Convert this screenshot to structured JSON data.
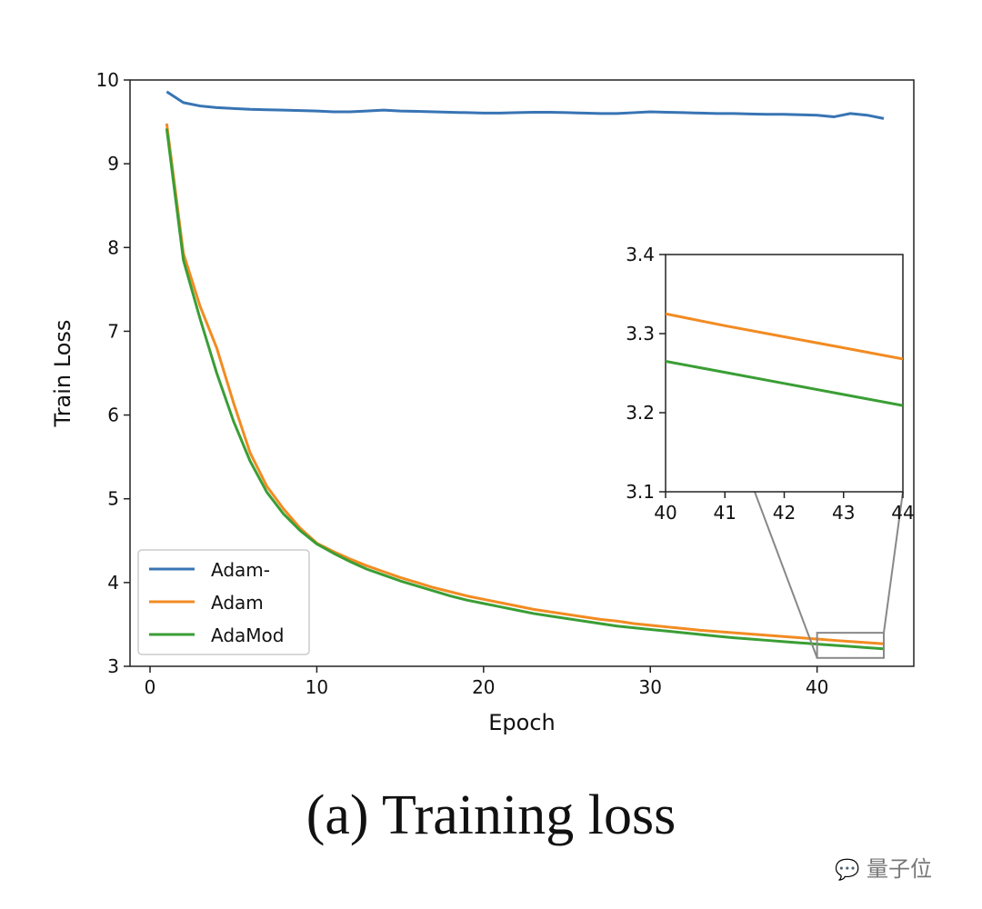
{
  "chart_data": {
    "type": "line",
    "xlabel": "Epoch",
    "ylabel": "Train Loss",
    "xlim": [
      -1.2,
      45.8
    ],
    "ylim": [
      3,
      10
    ],
    "xticks": [
      0,
      10,
      20,
      30,
      40
    ],
    "yticks": [
      3,
      4,
      5,
      6,
      7,
      8,
      9,
      10
    ],
    "grid": false,
    "legend_placement": "lower-left",
    "x": [
      1,
      2,
      3,
      4,
      5,
      6,
      7,
      8,
      9,
      10,
      11,
      12,
      13,
      14,
      15,
      16,
      17,
      18,
      19,
      20,
      21,
      22,
      23,
      24,
      25,
      26,
      27,
      28,
      29,
      30,
      31,
      32,
      33,
      34,
      35,
      36,
      37,
      38,
      39,
      40,
      41,
      42,
      43,
      44
    ],
    "series": [
      {
        "name": "Adam-",
        "color": "#3874b4",
        "values": [
          9.86,
          9.73,
          9.69,
          9.67,
          9.66,
          9.65,
          9.645,
          9.64,
          9.635,
          9.63,
          9.62,
          9.62,
          9.63,
          9.64,
          9.63,
          9.625,
          9.62,
          9.615,
          9.61,
          9.605,
          9.605,
          9.61,
          9.615,
          9.615,
          9.61,
          9.605,
          9.6,
          9.6,
          9.61,
          9.62,
          9.615,
          9.61,
          9.605,
          9.6,
          9.6,
          9.595,
          9.59,
          9.59,
          9.585,
          9.58,
          9.56,
          9.6,
          9.58,
          9.54
        ]
      },
      {
        "name": "Adam",
        "color": "#f28b22",
        "values": [
          9.48,
          7.93,
          7.3,
          6.8,
          6.15,
          5.55,
          5.15,
          4.88,
          4.65,
          4.47,
          4.37,
          4.28,
          4.2,
          4.13,
          4.06,
          4.0,
          3.94,
          3.89,
          3.84,
          3.8,
          3.76,
          3.72,
          3.68,
          3.65,
          3.62,
          3.59,
          3.56,
          3.54,
          3.51,
          3.49,
          3.47,
          3.45,
          3.43,
          3.415,
          3.4,
          3.385,
          3.37,
          3.355,
          3.34,
          3.325,
          3.31,
          3.296,
          3.282,
          3.268
        ]
      },
      {
        "name": "AdaMod",
        "color": "#3a9e35",
        "values": [
          9.42,
          7.85,
          7.15,
          6.5,
          5.93,
          5.45,
          5.08,
          4.82,
          4.62,
          4.46,
          4.35,
          4.25,
          4.16,
          4.09,
          4.02,
          3.96,
          3.9,
          3.84,
          3.79,
          3.75,
          3.71,
          3.67,
          3.63,
          3.6,
          3.57,
          3.54,
          3.51,
          3.48,
          3.46,
          3.44,
          3.42,
          3.4,
          3.38,
          3.36,
          3.34,
          3.325,
          3.31,
          3.295,
          3.28,
          3.265,
          3.251,
          3.237,
          3.223,
          3.209
        ]
      }
    ],
    "inset": {
      "xlim": [
        40,
        44
      ],
      "ylim": [
        3.1,
        3.4
      ],
      "xticks": [
        40,
        41,
        42,
        43,
        44
      ],
      "yticks": [
        "3.1",
        "3.2",
        "3.3",
        "3.4"
      ]
    }
  },
  "caption": "(a) Training loss",
  "watermark": "量子位"
}
